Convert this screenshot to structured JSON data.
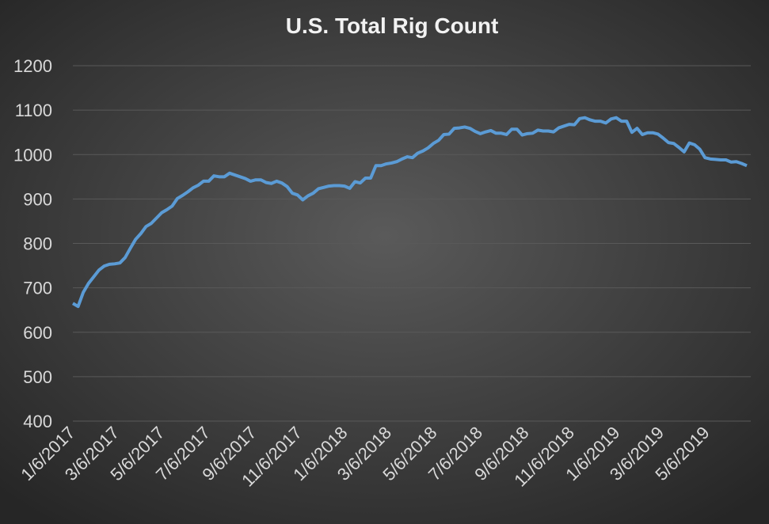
{
  "chart_data": {
    "type": "line",
    "title": "U.S. Total Rig Count",
    "x": [
      "1/6/2017",
      "1/13/2017",
      "1/20/2017",
      "1/27/2017",
      "2/3/2017",
      "2/10/2017",
      "2/17/2017",
      "2/24/2017",
      "3/3/2017",
      "3/10/2017",
      "3/17/2017",
      "3/24/2017",
      "3/31/2017",
      "4/7/2017",
      "4/14/2017",
      "4/21/2017",
      "4/28/2017",
      "5/5/2017",
      "5/12/2017",
      "5/19/2017",
      "5/26/2017",
      "6/2/2017",
      "6/9/2017",
      "6/16/2017",
      "6/23/2017",
      "6/30/2017",
      "7/7/2017",
      "7/14/2017",
      "7/21/2017",
      "7/28/2017",
      "8/4/2017",
      "8/11/2017",
      "8/18/2017",
      "8/25/2017",
      "9/1/2017",
      "9/8/2017",
      "9/15/2017",
      "9/22/2017",
      "9/29/2017",
      "10/6/2017",
      "10/13/2017",
      "10/20/2017",
      "10/27/2017",
      "11/3/2017",
      "11/10/2017",
      "11/17/2017",
      "11/24/2017",
      "12/1/2017",
      "12/8/2017",
      "12/15/2017",
      "12/22/2017",
      "12/29/2017",
      "1/5/2018",
      "1/12/2018",
      "1/19/2018",
      "1/26/2018",
      "2/2/2018",
      "2/9/2018",
      "2/16/2018",
      "2/23/2018",
      "3/2/2018",
      "3/9/2018",
      "3/16/2018",
      "3/23/2018",
      "3/30/2018",
      "4/6/2018",
      "4/13/2018",
      "4/20/2018",
      "4/27/2018",
      "5/4/2018",
      "5/11/2018",
      "5/18/2018",
      "5/25/2018",
      "6/1/2018",
      "6/8/2018",
      "6/15/2018",
      "6/22/2018",
      "6/29/2018",
      "7/6/2018",
      "7/13/2018",
      "7/20/2018",
      "7/27/2018",
      "8/3/2018",
      "8/10/2018",
      "8/17/2018",
      "8/24/2018",
      "8/31/2018",
      "9/7/2018",
      "9/14/2018",
      "9/21/2018",
      "9/28/2018",
      "10/5/2018",
      "10/12/2018",
      "10/19/2018",
      "10/26/2018",
      "11/2/2018",
      "11/9/2018",
      "11/16/2018",
      "11/23/2018",
      "11/30/2018",
      "12/7/2018",
      "12/14/2018",
      "12/21/2018",
      "12/28/2018",
      "1/4/2019",
      "1/11/2019",
      "1/18/2019",
      "1/25/2019",
      "2/1/2019",
      "2/8/2019",
      "2/15/2019",
      "2/22/2019",
      "3/1/2019",
      "3/8/2019",
      "3/15/2019",
      "3/22/2019",
      "3/29/2019",
      "4/5/2019",
      "4/12/2019",
      "4/19/2019",
      "4/26/2019",
      "5/3/2019",
      "5/10/2019",
      "5/17/2019",
      "5/24/2019",
      "5/31/2019",
      "6/7/2019",
      "6/14/2019",
      "6/21/2019",
      "6/28/2019"
    ],
    "series": [
      {
        "name": "U.S. Total Rig Count",
        "color": "#5b9bd5",
        "values": [
          665,
          658,
          690,
          710,
          725,
          740,
          749,
          753,
          754,
          756,
          768,
          789,
          809,
          822,
          838,
          845,
          857,
          869,
          876,
          884,
          901,
          908,
          916,
          925,
          931,
          940,
          940,
          952,
          950,
          950,
          958,
          954,
          950,
          946,
          940,
          943,
          943,
          937,
          935,
          940,
          936,
          928,
          913,
          909,
          898,
          907,
          913,
          923,
          926,
          929,
          930,
          930,
          929,
          924,
          939,
          936,
          947,
          947,
          975,
          975,
          979,
          981,
          984,
          990,
          995,
          993,
          1003,
          1008,
          1015,
          1025,
          1032,
          1045,
          1046,
          1059,
          1060,
          1062,
          1059,
          1052,
          1047,
          1051,
          1054,
          1048,
          1048,
          1045,
          1057,
          1057,
          1044,
          1047,
          1048,
          1055,
          1053,
          1053,
          1051,
          1060,
          1064,
          1068,
          1067,
          1081,
          1083,
          1078,
          1075,
          1075,
          1071,
          1080,
          1083,
          1075,
          1075,
          1050,
          1059,
          1045,
          1049,
          1049,
          1046,
          1037,
          1027,
          1025,
          1016,
          1006,
          1026,
          1022,
          1012,
          993,
          990,
          989,
          988,
          988,
          983,
          984,
          980,
          975
        ]
      }
    ],
    "xlim": [
      "1/6/2017",
      "6/28/2019"
    ],
    "xticks": [
      "1/6/2017",
      "3/6/2017",
      "5/6/2017",
      "7/6/2017",
      "9/6/2017",
      "11/6/2017",
      "1/6/2018",
      "3/6/2018",
      "5/6/2018",
      "7/6/2018",
      "9/6/2018",
      "11/6/2018",
      "1/6/2019",
      "3/6/2019",
      "5/6/2019"
    ],
    "ylim": [
      400,
      1200
    ],
    "yticks": [
      400,
      500,
      600,
      700,
      800,
      900,
      1000,
      1100,
      1200
    ],
    "grid": true
  }
}
